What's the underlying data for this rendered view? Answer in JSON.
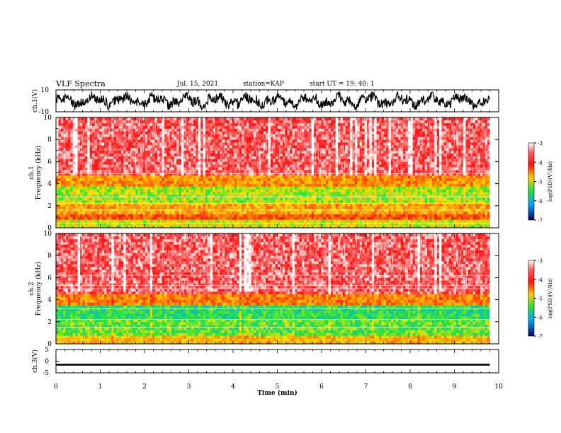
{
  "header": {
    "title": "VLF Spectra",
    "date": "Jul. 15, 2021",
    "station": "station=KAP",
    "start": "start UT =  19: 40: 1"
  },
  "colors": {
    "background": "#ffffff",
    "axis": "#000000",
    "spectrum_high": "#ff2020",
    "spectrum_mid": "#ffd200",
    "spectrum_low": "#20e040"
  },
  "chart_data": [
    {
      "type": "line",
      "panel": "ch1-waveform",
      "ylabel": "ch.1(V)",
      "ylim": [
        -10,
        10
      ],
      "yticks": [
        "-10",
        "10"
      ],
      "xlim": [
        0,
        10
      ],
      "x_end": 9.8,
      "amplitude_range": [
        -8,
        8
      ]
    },
    {
      "type": "heatmap",
      "panel": "ch1-spectrogram",
      "ylabel": "ch.1\nFrequency (kHz)",
      "ylim": [
        0,
        10
      ],
      "yticks": [
        "0",
        "2",
        "4",
        "6",
        "8",
        "10"
      ],
      "xlim": [
        0,
        10
      ],
      "x_end": 9.8,
      "colorbar": {
        "label": "log(PSD)(V²/Hz)",
        "range": [
          -7,
          -3
        ],
        "ticks": [
          "-3",
          "-4",
          "-5",
          "-6",
          "-7"
        ]
      },
      "bands": [
        {
          "f_lo": 0.0,
          "f_hi": 0.6,
          "level": -4.8
        },
        {
          "f_lo": 0.6,
          "f_hi": 1.2,
          "level": -4.0
        },
        {
          "f_lo": 1.2,
          "f_hi": 2.2,
          "level": -4.4
        },
        {
          "f_lo": 2.2,
          "f_hi": 3.6,
          "level": -4.9
        },
        {
          "f_lo": 3.6,
          "f_hi": 4.7,
          "level": -4.3
        },
        {
          "f_lo": 4.7,
          "f_hi": 10.0,
          "level": -3.4
        }
      ],
      "lines_khz": [
        0.4,
        1.6,
        2.2,
        2.8,
        4.9
      ]
    },
    {
      "type": "heatmap",
      "panel": "ch2-spectrogram",
      "ylabel": "ch.2\nFrequency (kHz)",
      "ylim": [
        0,
        10
      ],
      "yticks": [
        "0",
        "2",
        "4",
        "6",
        "8",
        "10"
      ],
      "xlim": [
        0,
        10
      ],
      "x_end": 9.8,
      "colorbar": {
        "label": "log(PSD)(V²/Hz)",
        "range": [
          -7,
          -3
        ],
        "ticks": [
          "-3",
          "-4",
          "-5",
          "-6",
          "-7"
        ]
      },
      "bands": [
        {
          "f_lo": 0.0,
          "f_hi": 0.6,
          "level": -4.5
        },
        {
          "f_lo": 0.6,
          "f_hi": 2.2,
          "level": -5.1
        },
        {
          "f_lo": 2.2,
          "f_hi": 3.4,
          "level": -5.3
        },
        {
          "f_lo": 3.4,
          "f_hi": 4.4,
          "level": -4.2
        },
        {
          "f_lo": 4.4,
          "f_hi": 10.0,
          "level": -3.4
        }
      ],
      "lines_khz": [
        1.5,
        2.2,
        3.2,
        5.0,
        5.3,
        6.2
      ]
    },
    {
      "type": "line",
      "panel": "ch3-waveform",
      "ylabel": "ch.3(V)",
      "ylim": [
        -5,
        5
      ],
      "yticks": [
        "-5",
        "0",
        "5"
      ],
      "xlim": [
        0,
        10
      ],
      "x_end": 9.8,
      "band_center": -1.5,
      "band_halfwidth": 0.4
    }
  ],
  "xaxis": {
    "label": "Time (min)",
    "ticks": [
      "0",
      "1",
      "2",
      "3",
      "4",
      "5",
      "6",
      "7",
      "8",
      "9",
      "10"
    ]
  }
}
